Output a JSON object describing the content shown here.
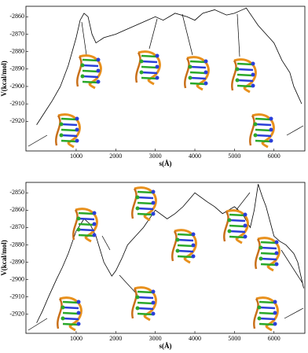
{
  "chart_data": [
    {
      "type": "line",
      "x_label": "s(Å)",
      "y_label": "V(kcal/mol)",
      "xlim": [
        -270,
        6780
      ],
      "ylim": [
        -2937,
        -2854
      ],
      "xticks": [
        1000,
        2000,
        3000,
        4000,
        5000,
        6000
      ],
      "yticks": [
        -2860,
        -2870,
        -2880,
        -2890,
        -2900,
        -2910,
        -2920
      ],
      "series": [
        {
          "color": "#000000",
          "x": [
            0,
            200,
            400,
            600,
            800,
            900,
            1000,
            1100,
            1200,
            1300,
            1400,
            1500,
            1700,
            2000,
            2200,
            2500,
            2800,
            3000,
            3200,
            3500,
            3800,
            4000,
            4200,
            4500,
            4800,
            5000,
            5200,
            5300,
            5450,
            5600,
            5800,
            6000,
            6200,
            6400,
            6500,
            6600,
            6700
          ],
          "values": [
            -2922,
            -2915,
            -2908,
            -2900,
            -2888,
            -2880,
            -2872,
            -2862,
            -2858,
            -2860,
            -2870,
            -2875,
            -2872,
            -2870,
            -2868,
            -2865,
            -2862,
            -2860,
            -2862,
            -2858,
            -2860,
            -2862,
            -2858,
            -2856,
            -2859,
            -2858,
            -2856,
            -2855,
            -2860,
            -2865,
            -2870,
            -2875,
            -2885,
            -2892,
            -2900,
            -2905,
            -2910
          ]
        }
      ]
    },
    {
      "type": "line",
      "x_label": "s(Å)",
      "y_label": "V(kcal/mol)",
      "xlim": [
        -270,
        6780
      ],
      "ylim": [
        -2931,
        -2844
      ],
      "xticks": [
        1000,
        2000,
        3000,
        4000,
        5000,
        6000
      ],
      "yticks": [
        -2850,
        -2860,
        -2870,
        -2880,
        -2890,
        -2900,
        -2910,
        -2920
      ],
      "series": [
        {
          "color": "#000000",
          "x": [
            0,
            150,
            300,
            500,
            650,
            800,
            1000,
            1200,
            1350,
            1500,
            1700,
            1900,
            2000,
            2150,
            2300,
            2500,
            2700,
            3000,
            3300,
            3500,
            3700,
            4000,
            4300,
            4500,
            4700,
            5000,
            5200,
            5400,
            5500,
            5600,
            5700,
            5800,
            6000,
            6150,
            6300,
            6500,
            6600,
            6750
          ],
          "values": [
            -2925,
            -2918,
            -2910,
            -2900,
            -2893,
            -2885,
            -2872,
            -2865,
            -2868,
            -2875,
            -2890,
            -2898,
            -2895,
            -2888,
            -2880,
            -2875,
            -2870,
            -2860,
            -2865,
            -2862,
            -2858,
            -2850,
            -2855,
            -2858,
            -2862,
            -2858,
            -2862,
            -2870,
            -2860,
            -2845,
            -2852,
            -2858,
            -2875,
            -2878,
            -2880,
            -2885,
            -2890,
            -2905
          ]
        }
      ]
    }
  ]
}
